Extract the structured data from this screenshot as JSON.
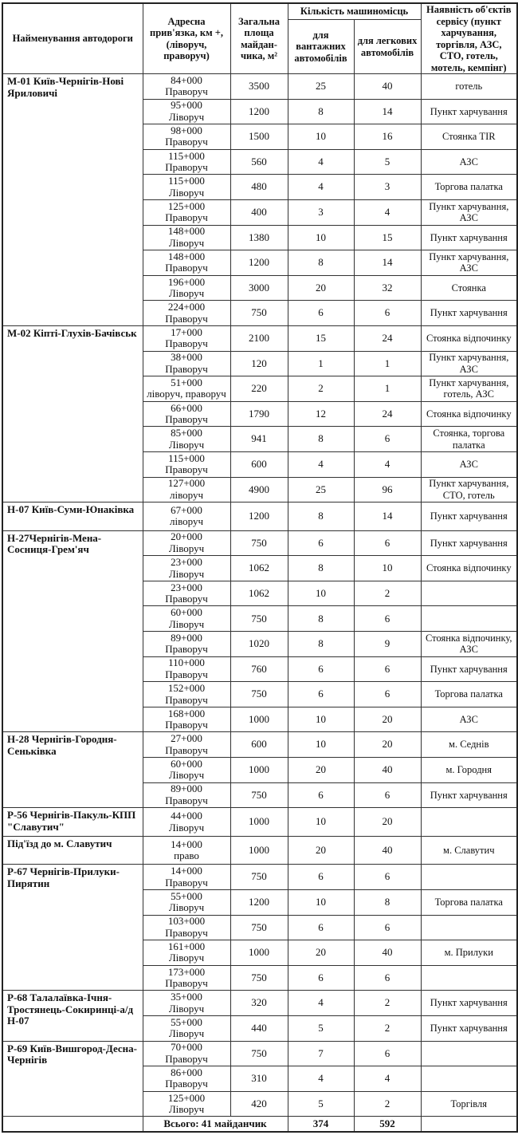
{
  "header": {
    "road": "Найменування автодороги",
    "address": "Адресна прив'язка, км +, (ліворуч, праворуч)",
    "area": "Загальна площа майдан-чика, м²",
    "spaces": "Кількість машиномісць",
    "trucks": "для вантажних автомобілів",
    "cars": "для легкових автомобілів",
    "services": "Наявність об'єктів сервісу (пункт харчування, торгівля, АЗС, СТО, готель, мотель, кемпінг)"
  },
  "groups": [
    {
      "road": "М-01 Київ-Чернігів-Нові Яриловичі",
      "rows": [
        {
          "km": "84+000",
          "side": "Праворуч",
          "area": "3500",
          "trucks": "25",
          "cars": "40",
          "service": "готель"
        },
        {
          "km": "95+000",
          "side": "Ліворуч",
          "area": "1200",
          "trucks": "8",
          "cars": "14",
          "service": "Пункт харчування"
        },
        {
          "km": "98+000",
          "side": "Праворуч",
          "area": "1500",
          "trucks": "10",
          "cars": "16",
          "service": "Стоянка TIR"
        },
        {
          "km": "115+000",
          "side": "Праворуч",
          "area": "560",
          "trucks": "4",
          "cars": "5",
          "service": "АЗС"
        },
        {
          "km": "115+000",
          "side": "Ліворуч",
          "area": "480",
          "trucks": "4",
          "cars": "3",
          "service": "Торгова палатка"
        },
        {
          "km": "125+000",
          "side": "Праворуч",
          "area": "400",
          "trucks": "3",
          "cars": "4",
          "service": "Пункт харчування, АЗС"
        },
        {
          "km": "148+000",
          "side": "Ліворуч",
          "area": "1380",
          "trucks": "10",
          "cars": "15",
          "service": "Пункт харчування"
        },
        {
          "km": "148+000",
          "side": "Праворуч",
          "area": "1200",
          "trucks": "8",
          "cars": "14",
          "service": "Пункт харчування, АЗС"
        },
        {
          "km": "196+000",
          "side": "Ліворуч",
          "area": "3000",
          "trucks": "20",
          "cars": "32",
          "service": "Стоянка"
        },
        {
          "km": "224+000",
          "side": "Праворуч",
          "area": "750",
          "trucks": "6",
          "cars": "6",
          "service": "Пункт харчування"
        }
      ]
    },
    {
      "road": "М-02 Кіпті-Глухів-Бачівськ",
      "rows": [
        {
          "km": "17+000",
          "side": "Праворуч",
          "area": "2100",
          "trucks": "15",
          "cars": "24",
          "service": "Стоянка відпочинку"
        },
        {
          "km": "38+000",
          "side": "Праворуч",
          "area": "120",
          "trucks": "1",
          "cars": "1",
          "service": "Пункт харчування, АЗС"
        },
        {
          "km": "51+000",
          "side": "ліворуч, праворуч",
          "area": "220",
          "trucks": "2",
          "cars": "1",
          "service": "Пункт харчування, готель, АЗС"
        },
        {
          "km": "66+000",
          "side": "Праворуч",
          "area": "1790",
          "trucks": "12",
          "cars": "24",
          "service": "Стоянка відпочинку"
        },
        {
          "km": "85+000",
          "side": "Ліворуч",
          "area": "941",
          "trucks": "8",
          "cars": "6",
          "service": "Стоянка, торгова палатка"
        },
        {
          "km": "115+000",
          "side": "Праворуч",
          "area": "600",
          "trucks": "4",
          "cars": "4",
          "service": "АЗС"
        },
        {
          "km": "127+000",
          "side": "ліворуч",
          "area": "4900",
          "trucks": "25",
          "cars": "96",
          "service": "Пункт харчування, СТО, готель"
        }
      ]
    },
    {
      "road": "Н-07 Київ-Суми-Юнаківка",
      "rows": [
        {
          "km": "67+000",
          "side": "ліворуч",
          "area": "1200",
          "trucks": "8",
          "cars": "14",
          "service": "Пункт харчування"
        }
      ]
    },
    {
      "road": "Н-27Чернігів-Мена-Сосниця-Грем'яч",
      "rows": [
        {
          "km": "20+000",
          "side": "Ліворуч",
          "area": "750",
          "trucks": "6",
          "cars": "6",
          "service": "Пункт харчування"
        },
        {
          "km": "23+000",
          "side": "Ліворуч",
          "area": "1062",
          "trucks": "8",
          "cars": "10",
          "service": "Стоянка відпочинку"
        },
        {
          "km": "23+000",
          "side": "Праворуч",
          "area": "1062",
          "trucks": "10",
          "cars": "2",
          "service": ""
        },
        {
          "km": "60+000",
          "side": "Ліворуч",
          "area": "750",
          "trucks": "8",
          "cars": "6",
          "service": ""
        },
        {
          "km": "89+000",
          "side": "Праворуч",
          "area": "1020",
          "trucks": "8",
          "cars": "9",
          "service": "Стоянка відпочинку, АЗС"
        },
        {
          "km": "110+000",
          "side": "Праворуч",
          "area": "760",
          "trucks": "6",
          "cars": "6",
          "service": "Пункт харчування"
        },
        {
          "km": "152+000",
          "side": "Праворуч",
          "area": "750",
          "trucks": "6",
          "cars": "6",
          "service": "Торгова палатка"
        },
        {
          "km": "168+000",
          "side": "Праворуч",
          "area": "1000",
          "trucks": "10",
          "cars": "20",
          "service": "АЗС"
        }
      ]
    },
    {
      "road": "Н-28 Чернігів-Городня-Сеньківка",
      "rows": [
        {
          "km": "27+000",
          "side": "Праворуч",
          "area": "600",
          "trucks": "10",
          "cars": "20",
          "service": "м. Седнів"
        },
        {
          "km": "60+000",
          "side": "Ліворуч",
          "area": "1000",
          "trucks": "20",
          "cars": "40",
          "service": "м. Городня"
        },
        {
          "km": "89+000",
          "side": "Праворуч",
          "area": "750",
          "trucks": "6",
          "cars": "6",
          "service": "Пункт харчування"
        }
      ]
    },
    {
      "road": "Р-56 Чернігів-Пакуль-КПП \"Славутич\"",
      "rows": [
        {
          "km": "44+000",
          "side": "Ліворуч",
          "area": "1000",
          "trucks": "10",
          "cars": "20",
          "service": ""
        }
      ]
    },
    {
      "road": "Під'їзд до м. Славутич",
      "rows": [
        {
          "km": "14+000",
          "side": "право",
          "area": "1000",
          "trucks": "20",
          "cars": "40",
          "service": "м. Славутич"
        }
      ]
    },
    {
      "road": "Р-67 Чернігів-Прилуки-Пирятин",
      "rows": [
        {
          "km": "14+000",
          "side": "Праворуч",
          "area": "750",
          "trucks": "6",
          "cars": "6",
          "service": ""
        },
        {
          "km": "55+000",
          "side": "Ліворуч",
          "area": "1200",
          "trucks": "10",
          "cars": "8",
          "service": "Торгова палатка"
        },
        {
          "km": "103+000",
          "side": "Праворуч",
          "area": "750",
          "trucks": "6",
          "cars": "6",
          "service": ""
        },
        {
          "km": "161+000",
          "side": "Ліворуч",
          "area": "1000",
          "trucks": "20",
          "cars": "40",
          "service": "м. Прилуки"
        },
        {
          "km": "173+000",
          "side": "Праворуч",
          "area": "750",
          "trucks": "6",
          "cars": "6",
          "service": ""
        }
      ]
    },
    {
      "road": "Р-68 Талалаївка-Ічня-Тростянець-Сокиринці-а/д Н-07",
      "rows": [
        {
          "km": "35+000",
          "side": "Ліворуч",
          "area": "320",
          "trucks": "4",
          "cars": "2",
          "service": "Пункт харчування"
        },
        {
          "km": "55+000",
          "side": "Ліворуч",
          "area": "440",
          "trucks": "5",
          "cars": "2",
          "service": "Пункт харчування"
        }
      ]
    },
    {
      "road": "Р-69 Київ-Вишгород-Десна-Чернігів",
      "rows": [
        {
          "km": "70+000",
          "side": "Праворуч",
          "area": "750",
          "trucks": "7",
          "cars": "6",
          "service": ""
        },
        {
          "km": "86+000",
          "side": "Праворуч",
          "area": "310",
          "trucks": "4",
          "cars": "4",
          "service": ""
        },
        {
          "km": "125+000",
          "side": "Ліворуч",
          "area": "420",
          "trucks": "5",
          "cars": "2",
          "service": "Торгівля"
        }
      ]
    }
  ],
  "total": {
    "label": "Всього: 41 майданчик",
    "trucks": "374",
    "cars": "592"
  }
}
